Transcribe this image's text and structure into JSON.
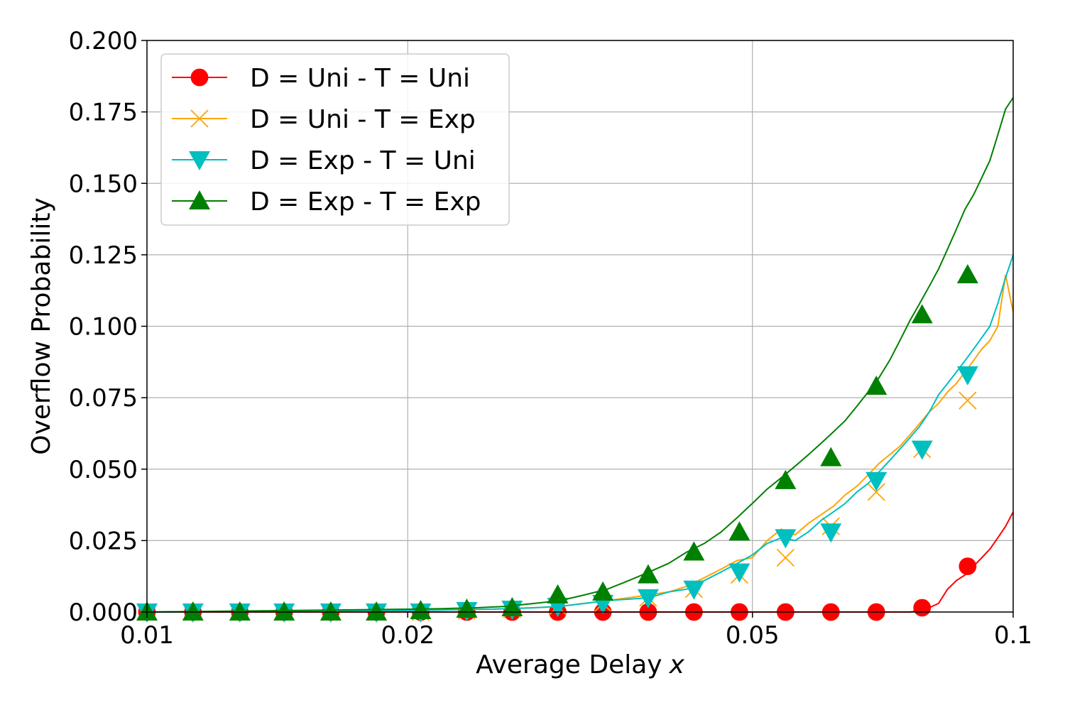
{
  "chart_data": {
    "type": "line",
    "title": "",
    "xlabel": "Average Delay",
    "xlabel_var": "x",
    "ylabel": "Overflow Probability",
    "x_scale": "log",
    "xlim": [
      0.01,
      0.1
    ],
    "ylim": [
      0,
      0.2
    ],
    "grid": true,
    "legend_position": "top-left",
    "x_ticks": [
      {
        "value": 0.01,
        "label": "0.01"
      },
      {
        "value": 0.02,
        "label": "0.02"
      },
      {
        "value": 0.05,
        "label": "0.05"
      },
      {
        "value": 0.1,
        "label": "0.1"
      }
    ],
    "y_ticks": [
      {
        "value": 0.0,
        "label": "0.000"
      },
      {
        "value": 0.025,
        "label": "0.025"
      },
      {
        "value": 0.05,
        "label": "0.050"
      },
      {
        "value": 0.075,
        "label": "0.075"
      },
      {
        "value": 0.1,
        "label": "0.100"
      },
      {
        "value": 0.125,
        "label": "0.125"
      },
      {
        "value": 0.15,
        "label": "0.150"
      },
      {
        "value": 0.175,
        "label": "0.175"
      },
      {
        "value": 0.2,
        "label": "0.200"
      }
    ],
    "series": [
      {
        "name": "D = Uni - T = Uni",
        "color": "#ff0000",
        "marker": "circle",
        "x": [
          0.01,
          0.0316,
          0.0355,
          0.04,
          0.045,
          0.06,
          0.075,
          0.076,
          0.078,
          0.08,
          0.082,
          0.084,
          0.086,
          0.088,
          0.09,
          0.092,
          0.094,
          0.096,
          0.098,
          0.1
        ],
        "y": [
          0.0,
          0.0,
          0.0,
          0.0,
          0.0,
          0.0,
          0.0,
          0.0,
          0.0005,
          0.0015,
          0.003,
          0.008,
          0.011,
          0.013,
          0.016,
          0.019,
          0.022,
          0.026,
          0.03,
          0.035
        ],
        "marker_x": [
          0.01,
          0.0113,
          0.0128,
          0.0144,
          0.0163,
          0.0184,
          0.0207,
          0.0234,
          0.0264,
          0.0298,
          0.0336,
          0.0379,
          0.0428,
          0.0483,
          0.0546,
          0.0616,
          0.0695,
          0.0785,
          0.0886
        ],
        "marker_y": [
          0,
          0,
          0,
          0,
          0,
          0,
          0,
          0,
          0,
          0,
          0,
          0,
          0,
          0,
          0,
          0,
          0,
          0.0015,
          0.016
        ]
      },
      {
        "name": "D = Uni - T = Exp",
        "color": "#ffa500",
        "marker": "x",
        "x": [
          0.01,
          0.02,
          0.025,
          0.028,
          0.03,
          0.032,
          0.034,
          0.036,
          0.038,
          0.04,
          0.042,
          0.044,
          0.046,
          0.048,
          0.05,
          0.052,
          0.054,
          0.056,
          0.058,
          0.06,
          0.062,
          0.064,
          0.066,
          0.068,
          0.07,
          0.072,
          0.074,
          0.076,
          0.078,
          0.08,
          0.082,
          0.084,
          0.086,
          0.088,
          0.09,
          0.092,
          0.094,
          0.096,
          0.098,
          0.1
        ],
        "y": [
          0.0,
          0.0005,
          0.001,
          0.0015,
          0.002,
          0.003,
          0.004,
          0.005,
          0.006,
          0.007,
          0.009,
          0.012,
          0.015,
          0.018,
          0.019,
          0.025,
          0.029,
          0.027,
          0.031,
          0.034,
          0.037,
          0.041,
          0.044,
          0.048,
          0.052,
          0.055,
          0.058,
          0.062,
          0.066,
          0.07,
          0.073,
          0.077,
          0.08,
          0.084,
          0.088,
          0.092,
          0.095,
          0.1,
          0.118,
          0.105
        ],
        "marker_x": [
          0.01,
          0.0113,
          0.0128,
          0.0144,
          0.0163,
          0.0184,
          0.0207,
          0.0234,
          0.0264,
          0.0298,
          0.0336,
          0.0379,
          0.0428,
          0.0483,
          0.0546,
          0.0616,
          0.0695,
          0.0785,
          0.0886
        ],
        "marker_y": [
          0,
          0,
          0,
          0,
          0,
          0,
          0,
          0.0005,
          0.001,
          0.002,
          0.003,
          0.005,
          0.008,
          0.013,
          0.019,
          0.03,
          0.042,
          0.057,
          0.074
        ]
      },
      {
        "name": "D = Exp - T = Uni",
        "color": "#00bfbf",
        "marker": "triangle-down",
        "x": [
          0.01,
          0.02,
          0.025,
          0.028,
          0.03,
          0.032,
          0.034,
          0.036,
          0.038,
          0.04,
          0.042,
          0.044,
          0.046,
          0.048,
          0.05,
          0.052,
          0.054,
          0.056,
          0.058,
          0.06,
          0.062,
          0.064,
          0.066,
          0.068,
          0.07,
          0.072,
          0.074,
          0.076,
          0.078,
          0.08,
          0.082,
          0.084,
          0.086,
          0.088,
          0.09,
          0.092,
          0.094,
          0.096,
          0.098,
          0.1
        ],
        "y": [
          0.0,
          0.0005,
          0.001,
          0.0015,
          0.002,
          0.003,
          0.004,
          0.0045,
          0.005,
          0.007,
          0.008,
          0.011,
          0.014,
          0.017,
          0.02,
          0.024,
          0.026,
          0.025,
          0.028,
          0.032,
          0.035,
          0.038,
          0.042,
          0.045,
          0.049,
          0.053,
          0.057,
          0.061,
          0.065,
          0.07,
          0.076,
          0.08,
          0.084,
          0.088,
          0.092,
          0.096,
          0.1,
          0.108,
          0.117,
          0.125
        ],
        "marker_x": [
          0.01,
          0.0113,
          0.0128,
          0.0144,
          0.0163,
          0.0184,
          0.0207,
          0.0234,
          0.0264,
          0.0298,
          0.0336,
          0.0379,
          0.0428,
          0.0483,
          0.0546,
          0.0616,
          0.0695,
          0.0785,
          0.0886
        ],
        "marker_y": [
          0,
          0,
          0,
          0,
          0,
          0,
          0,
          0.0005,
          0.001,
          0.002,
          0.003,
          0.005,
          0.008,
          0.014,
          0.026,
          0.028,
          0.046,
          0.057,
          0.083
        ]
      },
      {
        "name": "D = Exp - T = Exp",
        "color": "#008000",
        "marker": "triangle-up",
        "x": [
          0.01,
          0.02,
          0.022,
          0.024,
          0.026,
          0.028,
          0.03,
          0.032,
          0.034,
          0.036,
          0.038,
          0.04,
          0.042,
          0.044,
          0.046,
          0.048,
          0.05,
          0.052,
          0.054,
          0.056,
          0.058,
          0.06,
          0.062,
          0.064,
          0.066,
          0.068,
          0.07,
          0.072,
          0.074,
          0.076,
          0.078,
          0.08,
          0.082,
          0.084,
          0.086,
          0.088,
          0.09,
          0.092,
          0.094,
          0.096,
          0.098,
          0.1
        ],
        "y": [
          0.0,
          0.001,
          0.0012,
          0.0015,
          0.002,
          0.003,
          0.004,
          0.006,
          0.008,
          0.011,
          0.014,
          0.017,
          0.021,
          0.024,
          0.028,
          0.033,
          0.038,
          0.043,
          0.047,
          0.051,
          0.055,
          0.059,
          0.063,
          0.067,
          0.072,
          0.077,
          0.082,
          0.088,
          0.095,
          0.102,
          0.108,
          0.114,
          0.12,
          0.127,
          0.134,
          0.141,
          0.146,
          0.152,
          0.158,
          0.167,
          0.176,
          0.18
        ],
        "marker_x": [
          0.01,
          0.0113,
          0.0128,
          0.0144,
          0.0163,
          0.0184,
          0.0207,
          0.0234,
          0.0264,
          0.0298,
          0.0336,
          0.0379,
          0.0428,
          0.0483,
          0.0546,
          0.0616,
          0.0695,
          0.0785,
          0.0886
        ],
        "marker_y": [
          0,
          0,
          0,
          0,
          0,
          0,
          0.0005,
          0.001,
          0.0015,
          0.006,
          0.007,
          0.013,
          0.021,
          0.028,
          0.046,
          0.054,
          0.079,
          0.104,
          0.118
        ]
      }
    ]
  }
}
